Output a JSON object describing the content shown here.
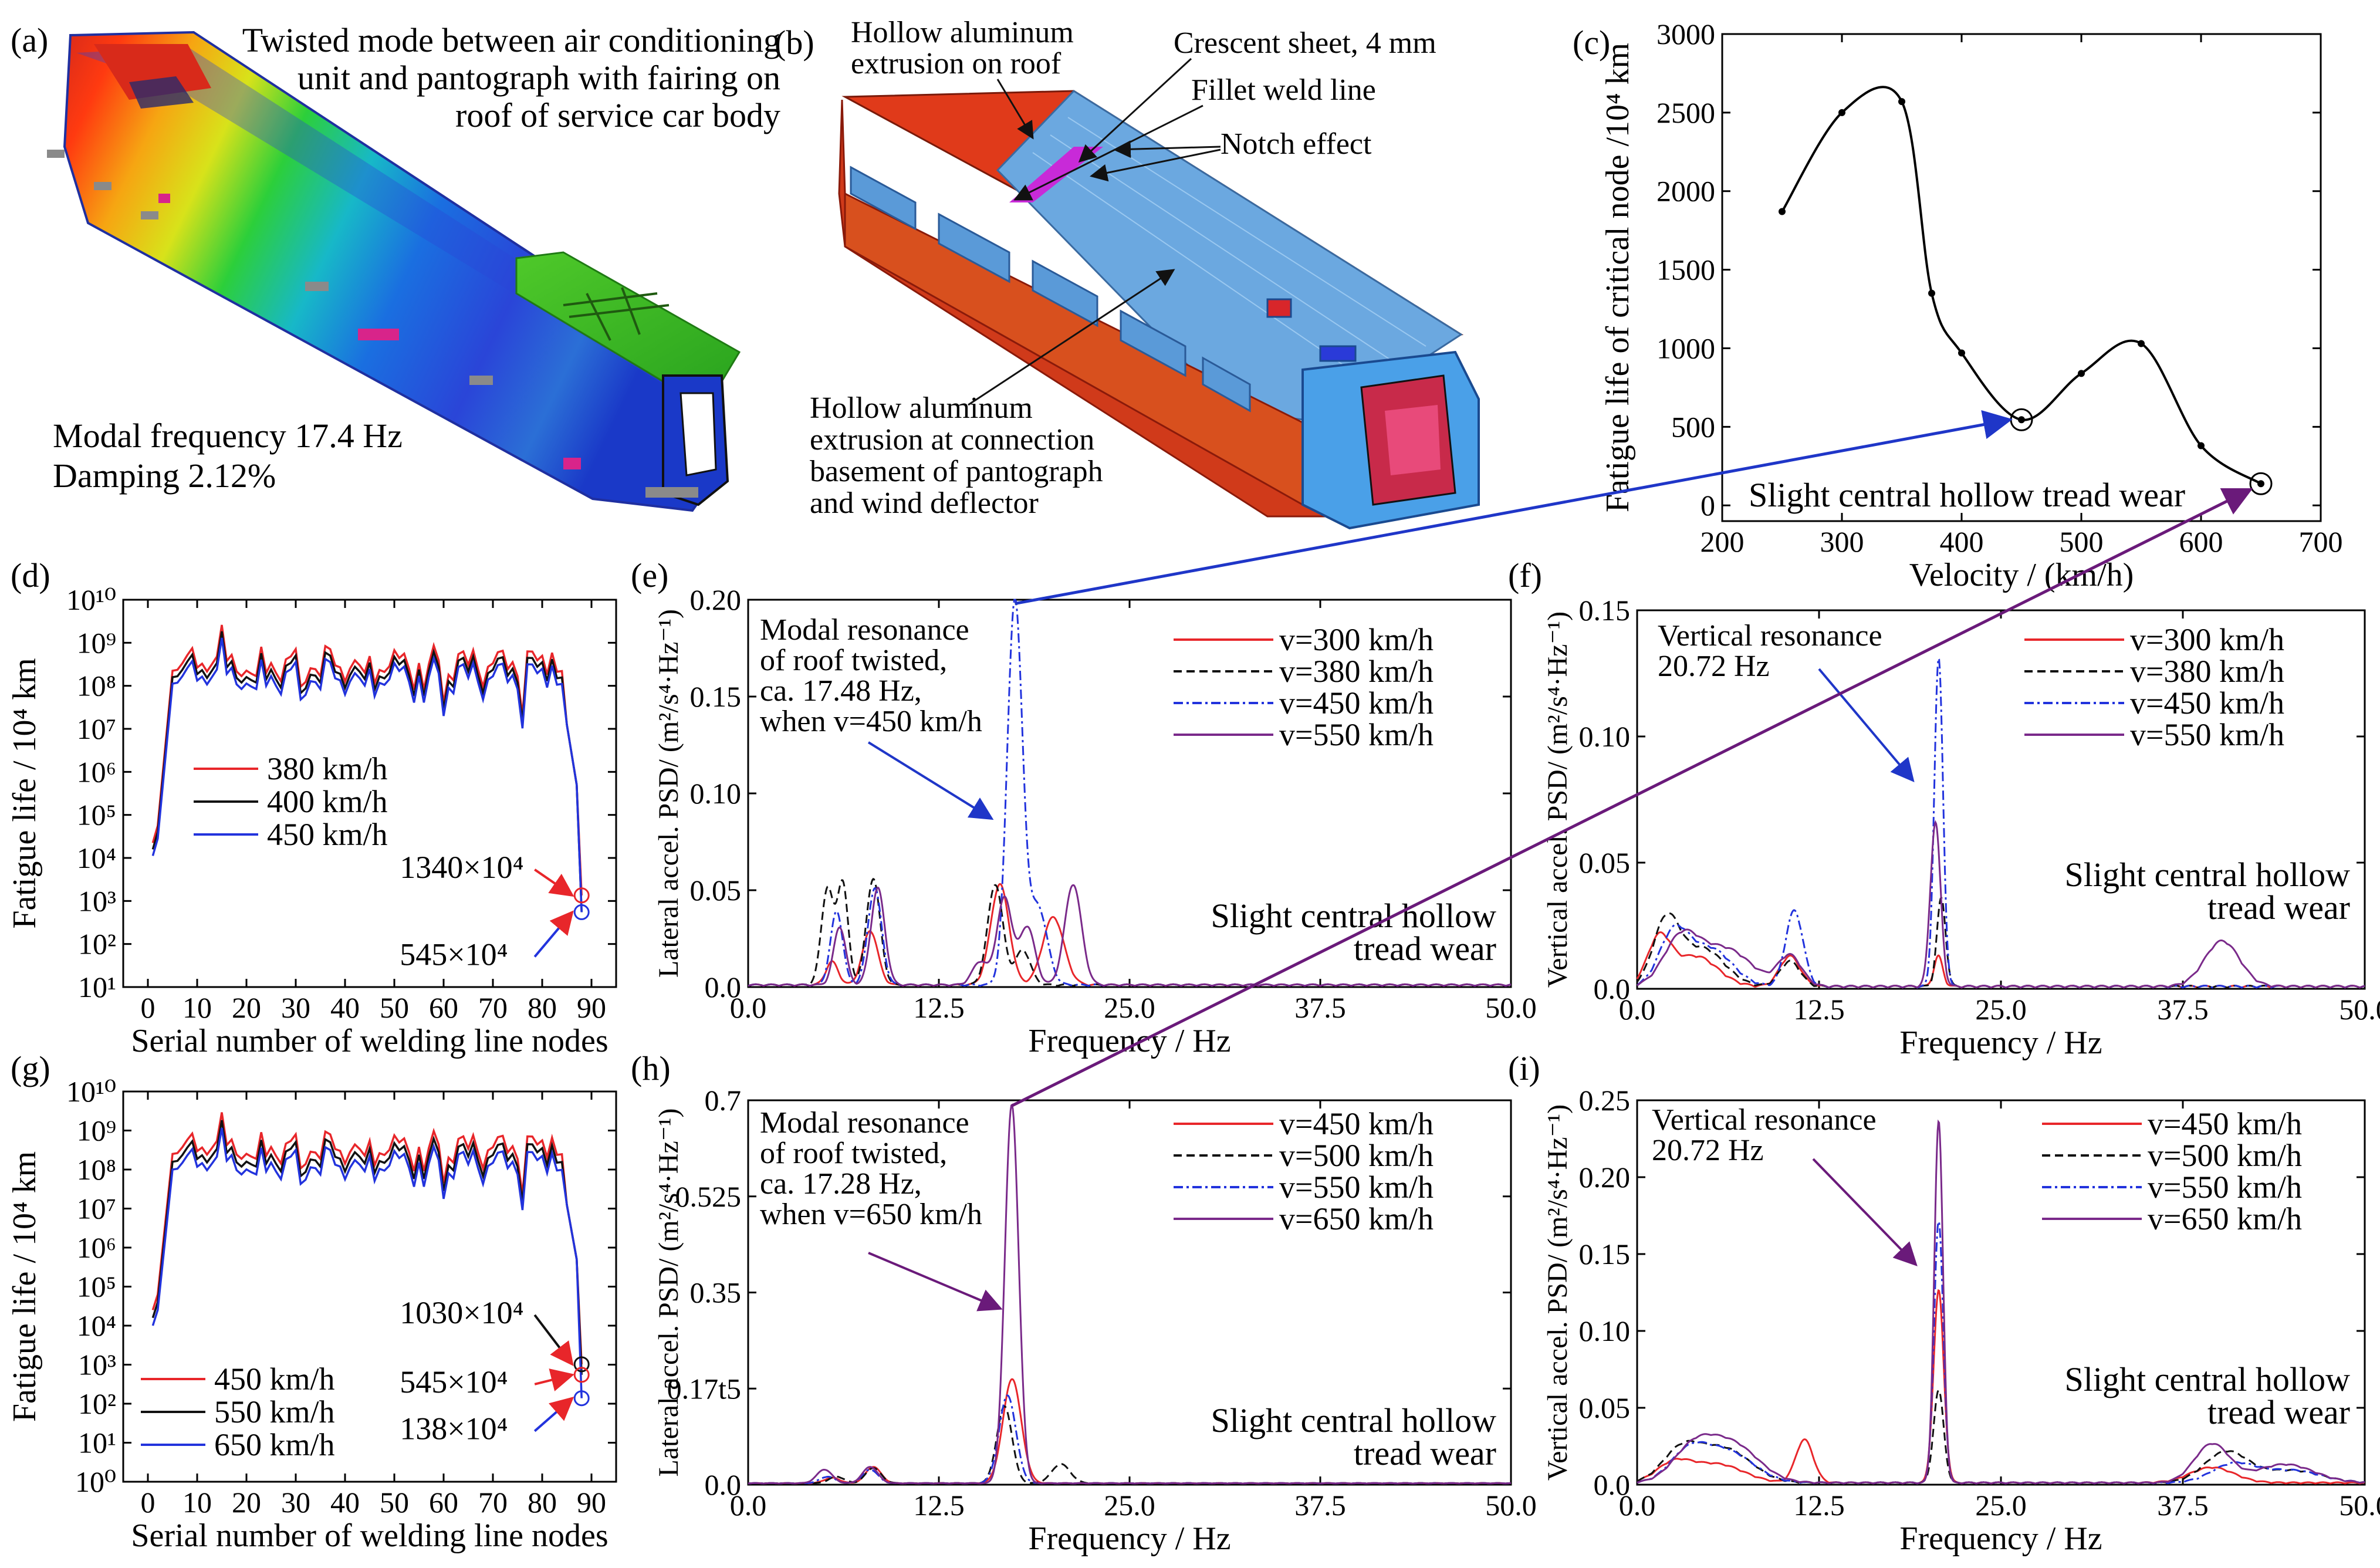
{
  "panels": {
    "a": {
      "label": "(a)",
      "caption_lines": [
        "Twisted mode between air conditioning",
        "unit and pantograph with fairing on",
        "roof of service car body"
      ],
      "modal_lines": [
        "Modal frequency 17.4 Hz",
        "Damping 2.12%"
      ]
    },
    "b": {
      "label": "(b)",
      "annotations": {
        "hollow_roof": [
          "Hollow aluminum",
          "extrusion on roof"
        ],
        "crescent": "Crescent sheet, 4 mm",
        "fillet": "Fillet weld line",
        "notch": "Notch effect",
        "hollow_connection": [
          "Hollow aluminum",
          "extrusion at connection",
          "basement of pantograph",
          "and wind deflector"
        ]
      }
    }
  },
  "colors": {
    "red": "#e8262a",
    "black": "#111111",
    "blue": "#2233dd",
    "purple": "#7a2a8a",
    "arrow_blue": "#1f36c8",
    "arrow_purple": "#6a1a7a"
  },
  "chart_data": [
    {
      "id": "c",
      "label": "(c)",
      "type": "line",
      "xlabel": "Velocity / (km/h)",
      "ylabel": "Fatigue life of critical node /10⁴ km",
      "xlim": [
        200,
        700
      ],
      "ylim": [
        -100,
        3000
      ],
      "xticks": [
        200,
        300,
        400,
        500,
        600,
        700
      ],
      "yticks": [
        0,
        500,
        1000,
        1500,
        2000,
        2500,
        3000
      ],
      "annotation": "Slight central hollow tread wear",
      "series": [
        {
          "color": "#000000",
          "x": [
            250,
            300,
            350,
            375,
            400,
            450,
            500,
            550,
            600,
            650
          ],
          "y": [
            1870,
            2500,
            2570,
            1350,
            970,
            545,
            840,
            1030,
            380,
            138
          ]
        }
      ],
      "markers": [
        [
          450,
          545
        ],
        [
          650,
          138
        ]
      ]
    },
    {
      "id": "d",
      "label": "(d)",
      "type": "line",
      "xlabel": "Serial number of welding line nodes",
      "ylabel": "Fatigue life / 10⁴ km",
      "xlim": [
        -5,
        95
      ],
      "ylim_log10": [
        1,
        10
      ],
      "xticks": [
        0,
        10,
        20,
        30,
        40,
        50,
        60,
        70,
        80,
        90
      ],
      "ytick_labels": [
        "10¹",
        "10²",
        "10³",
        "10⁴",
        "10⁵",
        "10⁶",
        "10⁷",
        "10⁸",
        "10⁹",
        "10¹⁰"
      ],
      "series": [
        {
          "name": "380 km/h",
          "color": "#e8262a",
          "offset": 0.15
        },
        {
          "name": "400 km/h",
          "color": "#111111",
          "offset": 0.0
        },
        {
          "name": "450 km/h",
          "color": "#2233dd",
          "offset": -0.15
        }
      ],
      "end_labels": [
        {
          "text": "1340×10⁴",
          "x": 88,
          "log": 3.13,
          "color": "#e8262a"
        },
        {
          "text": "545×10⁴",
          "x": 88,
          "log": 2.74,
          "color": "#2233dd"
        }
      ]
    },
    {
      "id": "e",
      "label": "(e)",
      "type": "line",
      "xlabel": "Frequency / Hz",
      "ylabel": "Lateral accel. PSD/ (m²/s⁴·Hz⁻¹)",
      "xlim": [
        0,
        50
      ],
      "ylim": [
        0,
        0.2
      ],
      "xticks": [
        "0.0",
        "12.5",
        "25.0",
        "37.5",
        "50.0"
      ],
      "yticks": [
        "0.0",
        "0.05",
        "0.10",
        "0.15",
        "0.20"
      ],
      "annotation_lines": [
        "Modal resonance",
        "of roof twisted,",
        "ca. 17.48 Hz,",
        "when v=450 km/h"
      ],
      "wear_lines": [
        "Slight central hollow",
        "tread wear"
      ],
      "series": [
        {
          "name": "v=300 km/h",
          "color": "#e8262a",
          "dash": "",
          "peaks": [
            [
              5.5,
              0.012,
              0.4
            ],
            [
              8.0,
              0.028,
              0.5
            ],
            [
              16.5,
              0.052,
              0.6
            ],
            [
              20.0,
              0.035,
              0.7
            ]
          ]
        },
        {
          "name": "v=380 km/h",
          "color": "#111111",
          "dash": "14,8",
          "peaks": [
            [
              5.2,
              0.05,
              0.4
            ],
            [
              6.2,
              0.052,
              0.35
            ],
            [
              8.2,
              0.055,
              0.45
            ],
            [
              16.2,
              0.052,
              0.5
            ],
            [
              18.0,
              0.018,
              0.5
            ]
          ]
        },
        {
          "name": "v=450 km/h",
          "color": "#2233dd",
          "dash": "16,6,4,6",
          "peaks": [
            [
              5.8,
              0.038,
              0.4
            ],
            [
              8.3,
              0.05,
              0.45
            ],
            [
              17.48,
              0.198,
              0.5
            ],
            [
              19.0,
              0.04,
              0.6
            ]
          ]
        },
        {
          "name": "v=550 km/h",
          "color": "#7a2a8a",
          "dash": "",
          "peaks": [
            [
              6.0,
              0.03,
              0.4
            ],
            [
              8.5,
              0.05,
              0.45
            ],
            [
              15.2,
              0.012,
              0.5
            ],
            [
              16.8,
              0.045,
              0.5
            ],
            [
              18.3,
              0.03,
              0.5
            ],
            [
              21.3,
              0.052,
              0.55
            ]
          ]
        }
      ]
    },
    {
      "id": "f",
      "label": "(f)",
      "type": "line",
      "xlabel": "Frequency / Hz",
      "ylabel": "Vertical accel. PSD/ (m²/s⁴·Hz⁻¹)",
      "xlim": [
        0,
        50
      ],
      "ylim": [
        0,
        0.15
      ],
      "xticks": [
        "0.0",
        "12.5",
        "25.0",
        "37.5",
        "50.0"
      ],
      "yticks": [
        "0.0",
        "0.05",
        "0.10",
        "0.15"
      ],
      "annotation_lines": [
        "Vertical resonance",
        "20.72 Hz"
      ],
      "wear_lines": [
        "Slight central hollow",
        "tread wear"
      ],
      "series": [
        {
          "name": "v=300 km/h",
          "color": "#e8262a",
          "dash": "",
          "peaks": [
            [
              1.5,
              0.018,
              0.8
            ],
            [
              4.0,
              0.012,
              1.5
            ],
            [
              10.5,
              0.012,
              0.7
            ],
            [
              20.7,
              0.012,
              0.3
            ]
          ]
        },
        {
          "name": "v=380 km/h",
          "color": "#111111",
          "dash": "14,8",
          "peaks": [
            [
              2.0,
              0.025,
              0.9
            ],
            [
              4.5,
              0.015,
              1.5
            ],
            [
              10.5,
              0.01,
              0.7
            ],
            [
              20.9,
              0.035,
              0.3
            ]
          ]
        },
        {
          "name": "v=450 km/h",
          "color": "#2233dd",
          "dash": "16,6,4,6",
          "peaks": [
            [
              2.5,
              0.02,
              1.0
            ],
            [
              5.0,
              0.015,
              1.5
            ],
            [
              10.8,
              0.03,
              0.6
            ],
            [
              20.72,
              0.13,
              0.3
            ]
          ]
        },
        {
          "name": "v=550 km/h",
          "color": "#7a2a8a",
          "dash": "",
          "peaks": [
            [
              3.0,
              0.018,
              1.2
            ],
            [
              6.0,
              0.015,
              1.8
            ],
            [
              10.5,
              0.012,
              0.8
            ],
            [
              20.5,
              0.065,
              0.35
            ],
            [
              40.2,
              0.018,
              1.2
            ]
          ]
        }
      ]
    },
    {
      "id": "g",
      "label": "(g)",
      "type": "line",
      "xlabel": "Serial number of welding line nodes",
      "ylabel": "Fatigue life / 10⁴ km",
      "xlim": [
        -5,
        95
      ],
      "ylim_log10": [
        0,
        10
      ],
      "xticks": [
        0,
        10,
        20,
        30,
        40,
        50,
        60,
        70,
        80,
        90
      ],
      "ytick_labels": [
        "10⁰",
        "10¹",
        "10²",
        "10³",
        "10⁴",
        "10⁵",
        "10⁶",
        "10⁷",
        "10⁸",
        "10⁹",
        "10¹⁰"
      ],
      "series": [
        {
          "name": "450 km/h",
          "color": "#e8262a",
          "offset": 0.2
        },
        {
          "name": "550 km/h",
          "color": "#111111",
          "offset": 0.0
        },
        {
          "name": "650 km/h",
          "color": "#2233dd",
          "offset": -0.2
        }
      ],
      "end_labels": [
        {
          "text": "1030×10⁴",
          "x": 88,
          "log": 3.01,
          "color": "#111111"
        },
        {
          "text": "545×10⁴",
          "x": 88,
          "log": 2.74,
          "color": "#e8262a"
        },
        {
          "text": "138×10⁴",
          "x": 88,
          "log": 2.14,
          "color": "#2233dd"
        }
      ]
    },
    {
      "id": "h",
      "label": "(h)",
      "type": "line",
      "xlabel": "Frequency / Hz",
      "ylabel": "Lateral accel. PSD/ (m²/s⁴·Hz⁻¹)",
      "xlim": [
        0,
        50
      ],
      "ylim": [
        0,
        0.7
      ],
      "xticks": [
        "0.0",
        "12.5",
        "25.0",
        "37.5",
        "50.0"
      ],
      "yticks": [
        "0.0",
        "0.17t5",
        "0.35",
        "0.525",
        "0.7"
      ],
      "annotation_lines": [
        "Modal resonance",
        "of roof twisted,",
        "ca. 17.28 Hz,",
        "when v=650 km/h"
      ],
      "wear_lines": [
        "Slight central hollow",
        "tread wear"
      ],
      "series": [
        {
          "name": "v=450 km/h",
          "color": "#e8262a",
          "dash": "",
          "peaks": [
            [
              5.5,
              0.01,
              0.5
            ],
            [
              8.2,
              0.03,
              0.5
            ],
            [
              17.3,
              0.19,
              0.6
            ]
          ]
        },
        {
          "name": "v=500 km/h",
          "color": "#111111",
          "dash": "14,8",
          "peaks": [
            [
              5.8,
              0.012,
              0.5
            ],
            [
              8.2,
              0.028,
              0.5
            ],
            [
              16.8,
              0.14,
              0.5
            ],
            [
              20.5,
              0.035,
              0.6
            ]
          ]
        },
        {
          "name": "v=550 km/h",
          "color": "#2233dd",
          "dash": "16,6,4,6",
          "peaks": [
            [
              5.2,
              0.012,
              0.5
            ],
            [
              8.0,
              0.025,
              0.5
            ],
            [
              17.0,
              0.16,
              0.55
            ]
          ]
        },
        {
          "name": "v=650 km/h",
          "color": "#7a2a8a",
          "dash": "",
          "peaks": [
            [
              5.0,
              0.025,
              0.5
            ],
            [
              8.0,
              0.03,
              0.5
            ],
            [
              17.28,
              0.69,
              0.45
            ]
          ]
        }
      ]
    },
    {
      "id": "i",
      "label": "(i)",
      "type": "line",
      "xlabel": "Frequency / Hz",
      "ylabel": "Vertical accel. PSD/ (m²/s⁴·Hz⁻¹)",
      "xlim": [
        0,
        50
      ],
      "ylim": [
        0,
        0.25
      ],
      "xticks": [
        "0.0",
        "12.5",
        "25.0",
        "37.5",
        "50.0"
      ],
      "yticks": [
        "0.0",
        "0.05",
        "0.10",
        "0.15",
        "0.20",
        "0.25"
      ],
      "annotation_lines": [
        "Vertical resonance",
        "20.72 Hz"
      ],
      "wear_lines": [
        "Slight central hollow",
        "tread wear"
      ],
      "series": [
        {
          "name": "v=450 km/h",
          "color": "#e8262a",
          "dash": "",
          "peaks": [
            [
              2.5,
              0.012,
              1.2
            ],
            [
              5.5,
              0.012,
              1.8
            ],
            [
              11.5,
              0.028,
              0.6
            ],
            [
              20.72,
              0.125,
              0.35
            ],
            [
              39.5,
              0.01,
              1.5
            ]
          ]
        },
        {
          "name": "v=500 km/h",
          "color": "#111111",
          "dash": "14,8",
          "peaks": [
            [
              3.0,
              0.02,
              1.3
            ],
            [
              6.0,
              0.022,
              1.8
            ],
            [
              20.72,
              0.06,
              0.35
            ],
            [
              40.5,
              0.02,
              1.5
            ],
            [
              45.0,
              0.008,
              2.0
            ]
          ]
        },
        {
          "name": "v=550 km/h",
          "color": "#2233dd",
          "dash": "16,6,4,6",
          "peaks": [
            [
              3.5,
              0.018,
              1.3
            ],
            [
              6.2,
              0.02,
              1.8
            ],
            [
              20.72,
              0.17,
              0.32
            ],
            [
              41.0,
              0.012,
              1.5
            ],
            [
              45.0,
              0.008,
              2.0
            ]
          ]
        },
        {
          "name": "v=650 km/h",
          "color": "#7a2a8a",
          "dash": "",
          "peaks": [
            [
              3.8,
              0.02,
              1.4
            ],
            [
              6.5,
              0.025,
              1.8
            ],
            [
              20.72,
              0.235,
              0.3
            ],
            [
              39.5,
              0.025,
              1.2
            ],
            [
              44.5,
              0.012,
              2.0
            ]
          ]
        }
      ]
    }
  ]
}
